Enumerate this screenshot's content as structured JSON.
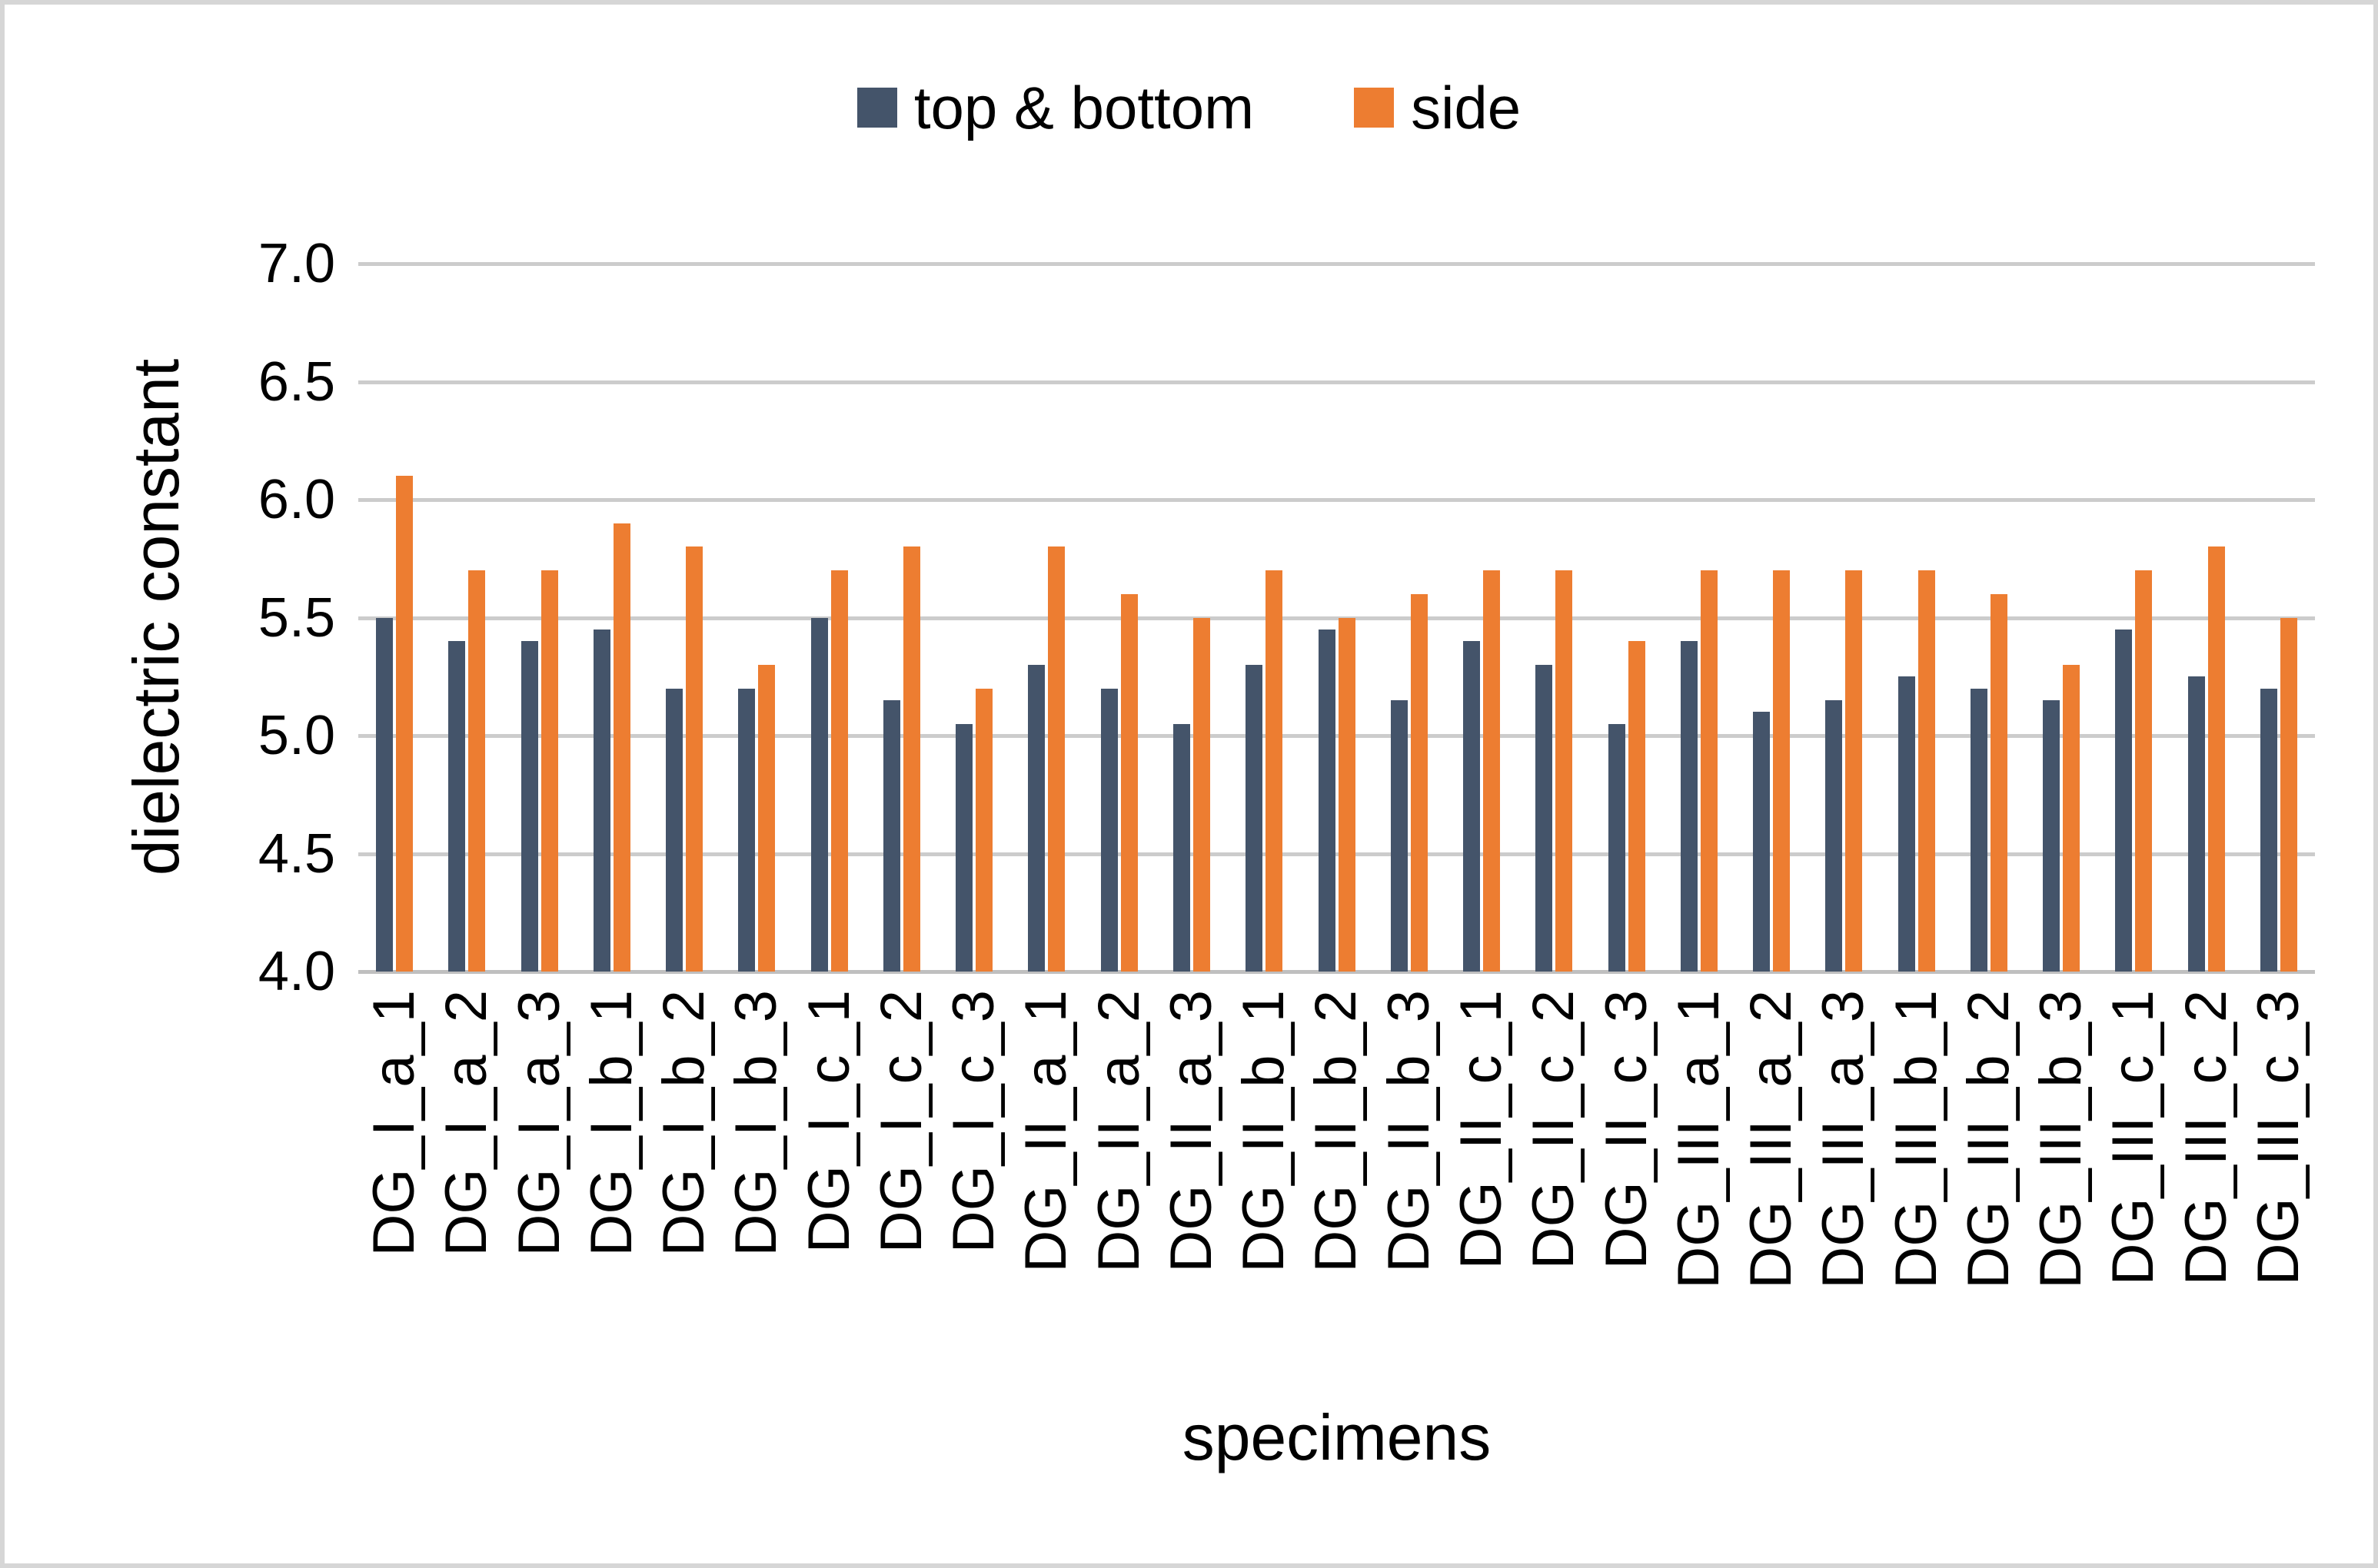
{
  "legend": {
    "items": [
      {
        "label": "top & bottom",
        "color": "#44546A"
      },
      {
        "label": "side",
        "color": "#ED7D31"
      }
    ]
  },
  "axes": {
    "y_title": "dielectric constant",
    "x_title": "specimens",
    "y_ticks": [
      "7.0",
      "6.5",
      "6.0",
      "5.5",
      "5.0",
      "4.5",
      "4.0"
    ]
  },
  "colors": {
    "gridline": "#CCCCCC",
    "axis_line": "#BFBFBF",
    "background": "#FFFFFF",
    "border": "#D6D6D6",
    "text": "#000000"
  },
  "chart_data": {
    "type": "bar",
    "title": "",
    "xlabel": "specimens",
    "ylabel": "dielectric constant",
    "ylim": [
      4.0,
      7.0
    ],
    "y_tick_step": 0.5,
    "grid": true,
    "legend_position": "top-center",
    "categories": [
      "DG_I_a_1",
      "DG_I_a_2",
      "DG_I_a_3",
      "DG_I_b_1",
      "DG_I_b_2",
      "DG_I_b_3",
      "DG_I_c_1",
      "DG_I_c_2",
      "DG_I_c_3",
      "DG_II_a_1",
      "DG_II_a_2",
      "DG_II_a_3",
      "DG_II_b_1",
      "DG_II_b_2",
      "DG_II_b_3",
      "DG_II_c_1",
      "DG_II_c_2",
      "DG_II_c_3",
      "DG_III_a_1",
      "DG_III_a_2",
      "DG_III_a_3",
      "DG_III_b_1",
      "DG_III_b_2",
      "DG_III_b_3",
      "DG_III_c_1",
      "DG_III_c_2",
      "DG_III_c_3"
    ],
    "series": [
      {
        "name": "top & bottom",
        "color": "#44546A",
        "values": [
          5.5,
          5.4,
          5.4,
          5.45,
          5.2,
          5.2,
          5.5,
          5.15,
          5.05,
          5.3,
          5.2,
          5.05,
          5.3,
          5.45,
          5.15,
          5.4,
          5.3,
          5.05,
          5.4,
          5.1,
          5.15,
          5.25,
          5.2,
          5.15,
          5.45,
          5.25,
          5.2
        ]
      },
      {
        "name": "side",
        "color": "#ED7D31",
        "values": [
          6.1,
          5.7,
          5.7,
          5.9,
          5.8,
          5.3,
          5.7,
          5.8,
          5.2,
          5.8,
          5.6,
          5.5,
          5.7,
          5.5,
          5.6,
          5.7,
          5.7,
          5.4,
          5.7,
          5.7,
          5.7,
          5.7,
          5.6,
          5.3,
          5.7,
          5.8,
          5.5
        ]
      }
    ]
  }
}
